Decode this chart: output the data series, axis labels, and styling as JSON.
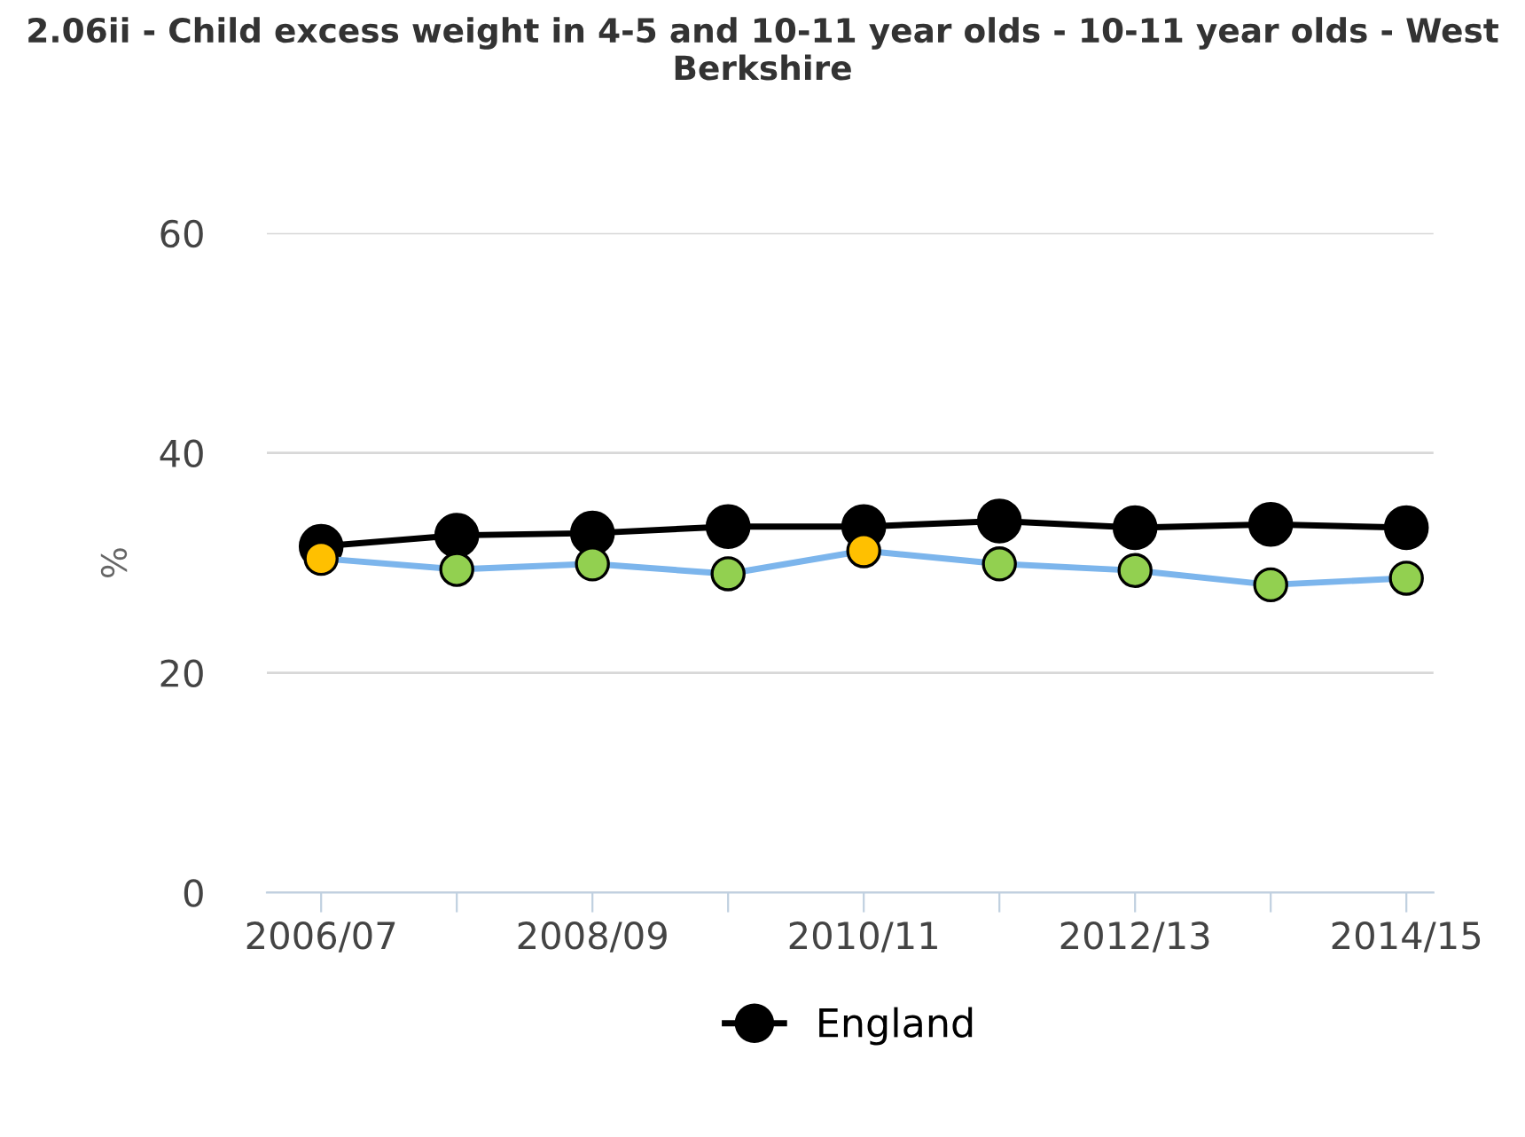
{
  "chart_data": {
    "type": "line",
    "title": "2.06ii - Child excess weight in 4-5 and 10-11 year olds - 10-11 year olds - West Berkshire",
    "ylabel": "%",
    "categories": [
      "2006/07",
      null,
      "2008/09",
      null,
      "2010/11",
      null,
      "2012/13",
      null,
      "2014/15"
    ],
    "series": [
      {
        "color": "#7cb5ec",
        "colors": [
          "#ffc000",
          "#92d050",
          "#92d050",
          "#92d050",
          "#ffc000",
          "#92d050",
          "#92d050",
          "#92d050",
          "#92d050"
        ],
        "values": [
          30.4,
          29.4,
          29.9,
          29.0,
          31.1,
          29.9,
          29.3,
          28.0,
          28.6
        ]
      },
      {
        "name": "England",
        "color": "#000000",
        "values": [
          31.5,
          32.5,
          32.7,
          33.3,
          33.3,
          33.8,
          33.2,
          33.5,
          33.2
        ]
      }
    ],
    "ylim": [
      0,
      60
    ],
    "yticks": [
      0,
      20,
      40,
      60
    ],
    "grid": "y",
    "legend": "bottom",
    "marker": "circle",
    "line_style": "solid"
  }
}
